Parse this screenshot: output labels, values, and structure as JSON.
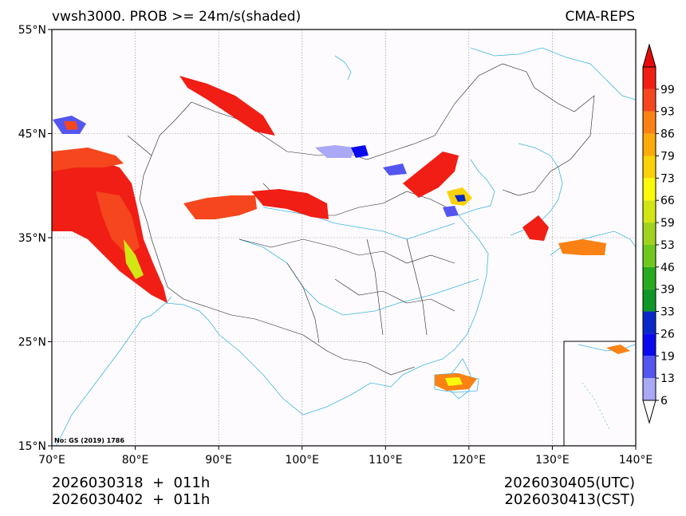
{
  "title_left": "vwsh3000. PROB >= 24m/s(shaded)",
  "title_right": "CMA-REPS",
  "map": {
    "lon_range": [
      70,
      140
    ],
    "lat_range": [
      15,
      55
    ],
    "x_ticks": [
      {
        "lon": 70,
        "label": "70°E"
      },
      {
        "lon": 80,
        "label": "80°E"
      },
      {
        "lon": 90,
        "label": "90°E"
      },
      {
        "lon": 100,
        "label": "100°E"
      },
      {
        "lon": 110,
        "label": "110°E"
      },
      {
        "lon": 120,
        "label": "120°E"
      },
      {
        "lon": 130,
        "label": "130°E"
      },
      {
        "lon": 140,
        "label": "140°E"
      }
    ],
    "y_ticks": [
      {
        "lat": 15,
        "label": "15°N"
      },
      {
        "lat": 25,
        "label": "25°N"
      },
      {
        "lat": 35,
        "label": "35°N"
      },
      {
        "lat": 45,
        "label": "45°N"
      },
      {
        "lat": 55,
        "label": "55°N"
      }
    ],
    "gridlines": true,
    "review_no": "No: GS (2019) 1786"
  },
  "colorbar": {
    "levels": [
      "6",
      "13",
      "19",
      "26",
      "33",
      "39",
      "46",
      "53",
      "59",
      "66",
      "73",
      "79",
      "86",
      "93",
      "99"
    ],
    "colors": [
      "#a9a9f5",
      "#5555f0",
      "#0a0aef",
      "#0a28c8",
      "#0f9628",
      "#28aa1e",
      "#6ec81e",
      "#a0d21e",
      "#d2e614",
      "#fafa0a",
      "#fad20a",
      "#faaa0a",
      "#fa8214",
      "#f5461e",
      "#f01e14"
    ],
    "over_color": "#e60a0a",
    "under_color": "#ffffff"
  },
  "footer": {
    "init_left": "2026030318  +  011h",
    "init_left2": "2026030402  +  011h",
    "valid_utc": "2026030405(UTC)",
    "valid_cst": "2026030413(CST)"
  }
}
